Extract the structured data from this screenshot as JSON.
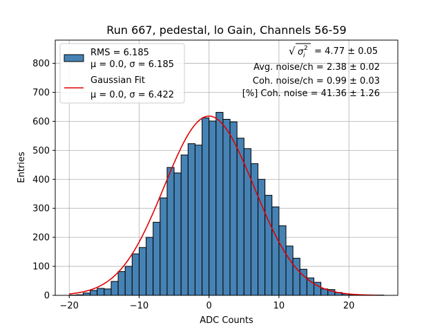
{
  "chart_data": {
    "type": "bar",
    "title": "Run 667, pedestal, lo Gain, Channels 56-59",
    "xlabel": "ADC Counts",
    "ylabel": "Entries",
    "xlim": [
      -22,
      27
    ],
    "ylim": [
      0,
      880
    ],
    "x_ticks": [
      -20,
      -10,
      0,
      10,
      20
    ],
    "x_tick_labels": [
      "−20",
      "−10",
      "0",
      "10",
      "20"
    ],
    "y_ticks": [
      0,
      100,
      200,
      300,
      400,
      500,
      600,
      700,
      800
    ],
    "y_tick_labels": [
      "0",
      "100",
      "200",
      "300",
      "400",
      "500",
      "600",
      "700",
      "800"
    ],
    "grid": true,
    "legend_placement": "upper-left",
    "bin_width": 1,
    "bin_starts": [
      -20,
      -19,
      -18,
      -17,
      -16,
      -15,
      -14,
      -13,
      -12,
      -11,
      -10,
      -9,
      -8,
      -7,
      -6,
      -5,
      -4,
      -3,
      -2,
      -1,
      0,
      1,
      2,
      3,
      4,
      5,
      6,
      7,
      8,
      9,
      10,
      11,
      12,
      13,
      14,
      15,
      16,
      17,
      18,
      19,
      20,
      21,
      22,
      23,
      24
    ],
    "values": [
      1,
      2,
      8,
      17,
      24,
      22,
      48,
      82,
      100,
      143,
      165,
      200,
      252,
      336,
      441,
      422,
      484,
      523,
      518,
      612,
      601,
      631,
      607,
      598,
      542,
      506,
      454,
      400,
      345,
      305,
      240,
      170,
      128,
      90,
      60,
      45,
      22,
      20,
      10,
      5,
      2,
      1,
      1,
      0,
      1
    ],
    "bar_color": "#4682b4",
    "fit": {
      "mu": 0.0,
      "sigma": 6.422,
      "amplitude": 618,
      "x_range": [
        -20,
        24
      ],
      "color": "#e00000"
    },
    "legend": [
      {
        "label_line1": "RMS = 6.185",
        "label_line2": "μ = 0.0, σ = 6.185",
        "type": "patch",
        "color": "#4682b4"
      },
      {
        "label_line1": "Gaussian Fit",
        "label_line2": "μ = 0.0, σ = 6.422",
        "type": "line",
        "color": "#e00000"
      }
    ],
    "annotations": {
      "sigma_value": " = 4.77 ± 0.05",
      "avg_noise": "Avg. noise/ch = 2.38 ± 0.02",
      "coh_noise": "Coh. noise/ch = 0.99 ± 0.03",
      "pct_coh_noise": "[%] Coh. noise = 41.36 ± 1.26"
    }
  }
}
